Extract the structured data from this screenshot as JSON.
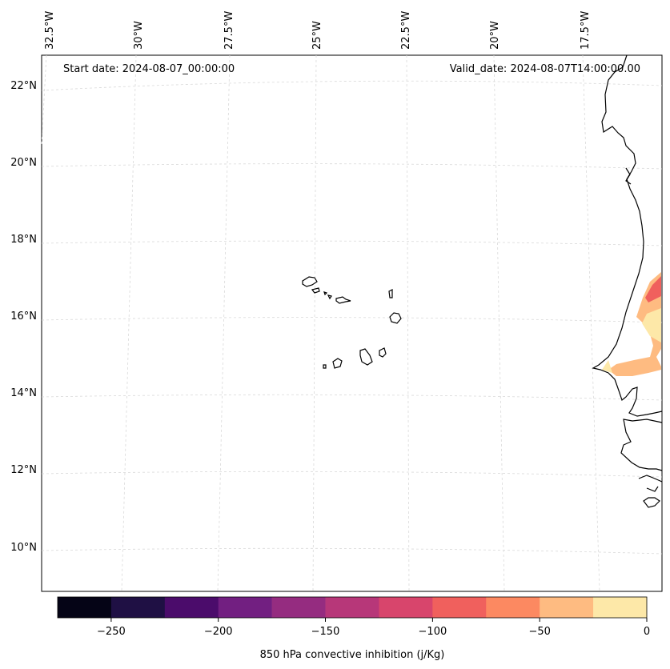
{
  "map": {
    "start_label": "Start date: 2024-08-07_00:00:00",
    "valid_label": "Valid_date: 2024-08-07T14:00:00.00",
    "lon_labels": [
      "32.5°W",
      "30°W",
      "27.5°W",
      "25°W",
      "22.5°W",
      "20°W",
      "17.5°W"
    ],
    "lat_labels": [
      "22°N",
      "20°N",
      "18°N",
      "16°N",
      "14°N",
      "12°N",
      "10°N"
    ],
    "gridlines": true,
    "coastline_color": "#000000"
  },
  "colorbar": {
    "label": "850 hPa convective inhibition (j/Kg)",
    "ticks": [
      "−250",
      "−200",
      "−150",
      "−100",
      "−50",
      "0"
    ],
    "levels": [
      -275,
      -250,
      -225,
      -200,
      -175,
      -150,
      -125,
      -100,
      -75,
      -50,
      -25,
      0
    ],
    "colors": [
      "#050416",
      "#1f1044",
      "#4b0c6b",
      "#721f81",
      "#952c80",
      "#b73779",
      "#d8456c",
      "#f0605d",
      "#fc8961",
      "#febb81",
      "#fde8a8"
    ]
  }
}
